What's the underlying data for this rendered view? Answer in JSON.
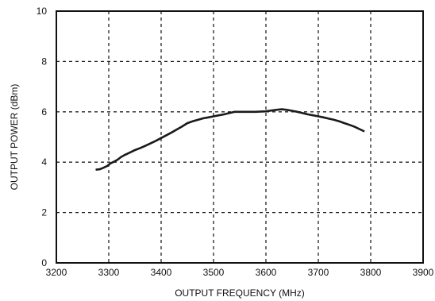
{
  "chart_data": {
    "type": "line",
    "title": "",
    "xlabel": "OUTPUT FREQUENCY (MHz)",
    "ylabel": "OUTPUT POWER (dBm)",
    "xlim": [
      3200,
      3900
    ],
    "ylim": [
      0,
      10
    ],
    "xticks": [
      3200,
      3300,
      3400,
      3500,
      3600,
      3700,
      3800,
      3900
    ],
    "yticks": [
      0,
      2,
      4,
      6,
      8,
      10
    ],
    "xtick_labels": [
      "3200",
      "3300",
      "3400",
      "3500",
      "3600",
      "3700",
      "3800",
      "3900"
    ],
    "ytick_labels": [
      "0",
      "2",
      "4",
      "6",
      "8",
      "10"
    ],
    "grid": true,
    "grid_style": "dashed",
    "legend": "none",
    "colors": {
      "line": "#1a1a1a",
      "grid": "#222222",
      "frame": "#111111"
    },
    "series": [
      {
        "x": [
          3275,
          3283,
          3290,
          3297,
          3303,
          3310,
          3317,
          3323,
          3330,
          3340,
          3350,
          3360,
          3370,
          3380,
          3390,
          3400,
          3410,
          3420,
          3430,
          3440,
          3450,
          3460,
          3470,
          3480,
          3490,
          3500,
          3510,
          3520,
          3530,
          3540,
          3560,
          3580,
          3600,
          3610,
          3620,
          3630,
          3640,
          3650,
          3660,
          3670,
          3680,
          3690,
          3700,
          3710,
          3720,
          3730,
          3740,
          3750,
          3760,
          3770,
          3780,
          3788
        ],
        "y": [
          3.7,
          3.72,
          3.78,
          3.85,
          3.95,
          4.02,
          4.1,
          4.2,
          4.28,
          4.38,
          4.48,
          4.56,
          4.65,
          4.75,
          4.85,
          4.96,
          5.07,
          5.18,
          5.3,
          5.42,
          5.55,
          5.62,
          5.68,
          5.74,
          5.78,
          5.82,
          5.86,
          5.9,
          5.95,
          6.0,
          6.0,
          6.0,
          6.02,
          6.05,
          6.08,
          6.1,
          6.08,
          6.04,
          6.0,
          5.95,
          5.9,
          5.86,
          5.82,
          5.78,
          5.73,
          5.68,
          5.62,
          5.55,
          5.48,
          5.4,
          5.3,
          5.22
        ]
      }
    ]
  }
}
